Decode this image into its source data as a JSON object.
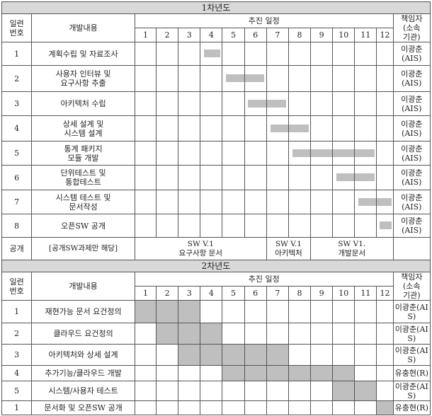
{
  "year1": {
    "title": "1차년도",
    "header": {
      "no": "일련\n번호",
      "content": "개발내용",
      "schedule": "추진 일정",
      "owner": "책임자\n(소속\n기관)",
      "months": [
        "1",
        "2",
        "3",
        "4",
        "5",
        "6",
        "7",
        "8",
        "9",
        "10",
        "11",
        "12"
      ]
    },
    "rows": [
      {
        "no": "1",
        "task": "계획수립 및 자료조사",
        "owner": "이광춘\n(AIS)",
        "start": 4,
        "end": 4
      },
      {
        "no": "2",
        "task": "사용자 인터뷰 및\n요구사항 추출",
        "owner": "이광춘\n(AIS)",
        "start": 5,
        "end": 6
      },
      {
        "no": "3",
        "task": "아키텍처 수립",
        "owner": "이광춘\n(AIS)",
        "start": 6,
        "end": 7
      },
      {
        "no": "4",
        "task": "상세 설계 및\n시스템 설계",
        "owner": "이광춘\n(AIS)",
        "start": 7,
        "end": 8
      },
      {
        "no": "5",
        "task": "통계 패키지\n모듈 개발",
        "owner": "이광춘\n(AIS)",
        "start": 8,
        "end": 11
      },
      {
        "no": "6",
        "task": "단위테스트 및\n통합테스트",
        "owner": "이광춘\n(AIS)",
        "start": 10,
        "end": 11
      },
      {
        "no": "7",
        "task": "시스템 테스트 및\n문서작성",
        "owner": "이광춘\n(AIS)",
        "start": 11,
        "end": 12
      },
      {
        "no": "8",
        "task": "오픈SW 공개",
        "owner": "이광춘\n(AIS)",
        "start": 12,
        "end": 12
      }
    ],
    "publish": {
      "label": "공개",
      "note": "[공개SW과제만 해당]",
      "m1_6": "SW V.1\n요구사항 문서",
      "m7_8": "SW V.1\n아키텍처",
      "m9_12": "SW V1.\n개발문서"
    }
  },
  "year2": {
    "title": "2차년도",
    "header": {
      "no": "일련\n번호",
      "content": "개발내용",
      "schedule": "추진 일정",
      "owner": "책임자\n(소속\n기관)",
      "months": [
        "1",
        "2",
        "3",
        "4",
        "5",
        "6",
        "7",
        "8",
        "9",
        "10",
        "11",
        "12"
      ]
    },
    "rows": [
      {
        "no": "1",
        "task": "재현가능 문서 요건정의",
        "owner": "이광춘(AI\nS)",
        "start": 1,
        "end": 3
      },
      {
        "no": "2",
        "task": "클라우드 요건정의",
        "owner": "이광춘(AI\nS)",
        "start": 2,
        "end": 4
      },
      {
        "no": "3",
        "task": "아키텍처와 상세 설계",
        "owner": "이광춘(AI\nS)",
        "start": 3,
        "end": 7
      },
      {
        "no": "4",
        "task": "추가기능/클라우드 개발",
        "owner": "유충현(R)",
        "start": 5,
        "end": 10
      },
      {
        "no": "5",
        "task": "시스템/사용자 테스트",
        "owner": "이광춘(AI\nS)",
        "start": 10,
        "end": 11
      },
      {
        "no": "1",
        "task": "문서화 및 오픈SW 공개",
        "owner": "유충현(R)",
        "start": 12,
        "end": 12
      }
    ]
  },
  "colors": {
    "bar": "#bfbfbf",
    "section": "#d9d9d9",
    "border": "#555555"
  }
}
